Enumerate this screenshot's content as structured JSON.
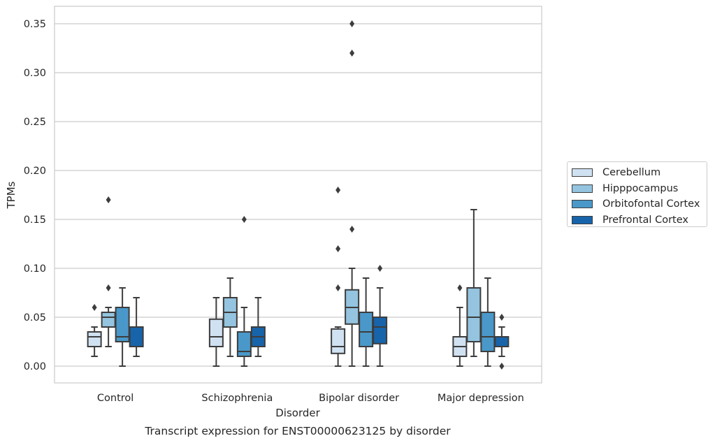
{
  "chart_data": {
    "type": "box",
    "title": "Transcript expression for ENST00000623125 by disorder",
    "xlabel": "Disorder",
    "ylabel": "TPMs",
    "ylim": [
      -0.017,
      0.367
    ],
    "yticks": [
      0.0,
      0.05,
      0.1,
      0.15,
      0.2,
      0.25,
      0.3,
      0.35
    ],
    "ytick_labels": [
      "0.00",
      "0.05",
      "0.10",
      "0.15",
      "0.20",
      "0.25",
      "0.30",
      "0.35"
    ],
    "grid": "horizontal",
    "legend_position": "right",
    "categories": [
      "Control",
      "Schizophrenia",
      "Bipolar disorder",
      "Major depression"
    ],
    "series": [
      {
        "name": "Cerebellum",
        "color": "#d0e1f2",
        "boxes": [
          {
            "whisker_low": 0.01,
            "q1": 0.02,
            "median": 0.03,
            "q3": 0.035,
            "whisker_high": 0.04,
            "outliers": [
              0.06
            ]
          },
          {
            "whisker_low": 0.0,
            "q1": 0.02,
            "median": 0.03,
            "q3": 0.048,
            "whisker_high": 0.07,
            "outliers": []
          },
          {
            "whisker_low": 0.0,
            "q1": 0.013,
            "median": 0.02,
            "q3": 0.038,
            "whisker_high": 0.04,
            "outliers": [
              0.08,
              0.12,
              0.18
            ]
          },
          {
            "whisker_low": 0.0,
            "q1": 0.01,
            "median": 0.02,
            "q3": 0.03,
            "whisker_high": 0.06,
            "outliers": [
              0.08
            ]
          }
        ]
      },
      {
        "name": "Hipppocampus",
        "color": "#94c4df",
        "boxes": [
          {
            "whisker_low": 0.02,
            "q1": 0.04,
            "median": 0.05,
            "q3": 0.055,
            "whisker_high": 0.06,
            "outliers": [
              0.08,
              0.17
            ]
          },
          {
            "whisker_low": 0.01,
            "q1": 0.04,
            "median": 0.055,
            "q3": 0.07,
            "whisker_high": 0.09,
            "outliers": []
          },
          {
            "whisker_low": 0.0,
            "q1": 0.043,
            "median": 0.06,
            "q3": 0.078,
            "whisker_high": 0.1,
            "outliers": [
              0.14,
              0.32,
              0.35
            ]
          },
          {
            "whisker_low": 0.01,
            "q1": 0.025,
            "median": 0.05,
            "q3": 0.08,
            "whisker_high": 0.16,
            "outliers": []
          }
        ]
      },
      {
        "name": "Orbitofontal Cortex",
        "color": "#4a98c9",
        "boxes": [
          {
            "whisker_low": 0.0,
            "q1": 0.025,
            "median": 0.03,
            "q3": 0.06,
            "whisker_high": 0.08,
            "outliers": []
          },
          {
            "whisker_low": 0.0,
            "q1": 0.01,
            "median": 0.015,
            "q3": 0.035,
            "whisker_high": 0.06,
            "outliers": [
              0.15
            ]
          },
          {
            "whisker_low": 0.0,
            "q1": 0.02,
            "median": 0.035,
            "q3": 0.055,
            "whisker_high": 0.09,
            "outliers": []
          },
          {
            "whisker_low": 0.0,
            "q1": 0.015,
            "median": 0.03,
            "q3": 0.055,
            "whisker_high": 0.09,
            "outliers": []
          }
        ]
      },
      {
        "name": "Prefrontal Cortex",
        "color": "#1764ab",
        "boxes": [
          {
            "whisker_low": 0.01,
            "q1": 0.02,
            "median": 0.02,
            "q3": 0.04,
            "whisker_high": 0.07,
            "outliers": []
          },
          {
            "whisker_low": 0.01,
            "q1": 0.02,
            "median": 0.03,
            "q3": 0.04,
            "whisker_high": 0.07,
            "outliers": []
          },
          {
            "whisker_low": 0.0,
            "q1": 0.023,
            "median": 0.04,
            "q3": 0.05,
            "whisker_high": 0.08,
            "outliers": [
              0.1
            ]
          },
          {
            "whisker_low": 0.01,
            "q1": 0.02,
            "median": 0.02,
            "q3": 0.03,
            "whisker_high": 0.04,
            "outliers": [
              0.0,
              0.05
            ]
          }
        ]
      }
    ]
  }
}
